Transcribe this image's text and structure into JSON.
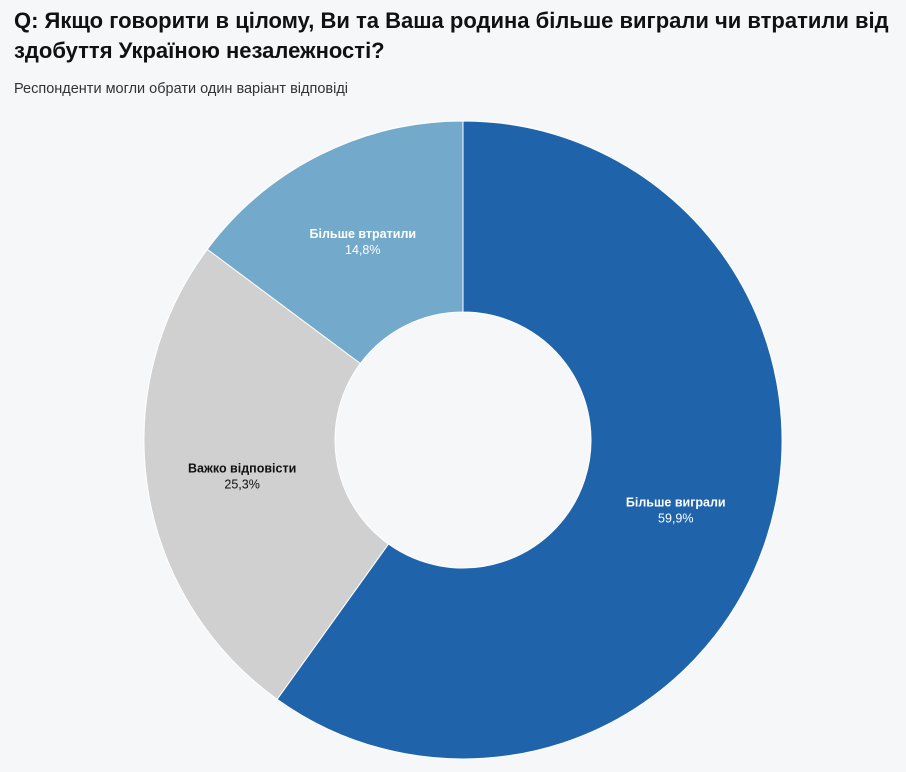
{
  "header": {
    "title": "Q: Якщо говорити в цілому, Ви та Ваша родина більше виграли чи втратили від здобуття Україною незалежності?",
    "subtitle": "Респонденти могли обрати один варіант відповіді"
  },
  "chart_data": {
    "type": "pie",
    "donut": true,
    "title": "Q: Якщо говорити в цілому, Ви та Ваша родина більше виграли чи втратили від здобуття Україною незалежності?",
    "subtitle": "Респонденти могли обрати один варіант відповіді",
    "slices": [
      {
        "name": "Більше виграли",
        "value": 59.9,
        "label": "59,9%",
        "color": "#1f63ab",
        "text_color": "#ffffff"
      },
      {
        "name": "Важко відповісти",
        "value": 25.3,
        "label": "25,3%",
        "color": "#d0d0d0",
        "text_color": "#111111"
      },
      {
        "name": "Більше втратили",
        "value": 14.8,
        "label": "14,8%",
        "color": "#73a9cb",
        "text_color": "#ffffff"
      }
    ],
    "start_direction": "12 o'clock",
    "order": "clockwise",
    "legend": "none"
  }
}
